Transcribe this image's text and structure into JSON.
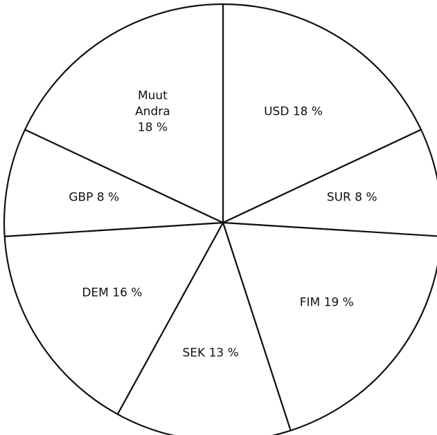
{
  "chart_data": {
    "type": "pie",
    "categories": [
      "USD",
      "SUR",
      "FIM",
      "SEK",
      "DEM",
      "GBP",
      "Muut Andra"
    ],
    "values": [
      18,
      8,
      19,
      13,
      16,
      8,
      18
    ],
    "value_labels": [
      "18 %",
      "8 %",
      "19 %",
      "13 %",
      "16 %",
      "8 %",
      "18 %"
    ],
    "color": "#ffffff",
    "line_color": "#111111"
  }
}
